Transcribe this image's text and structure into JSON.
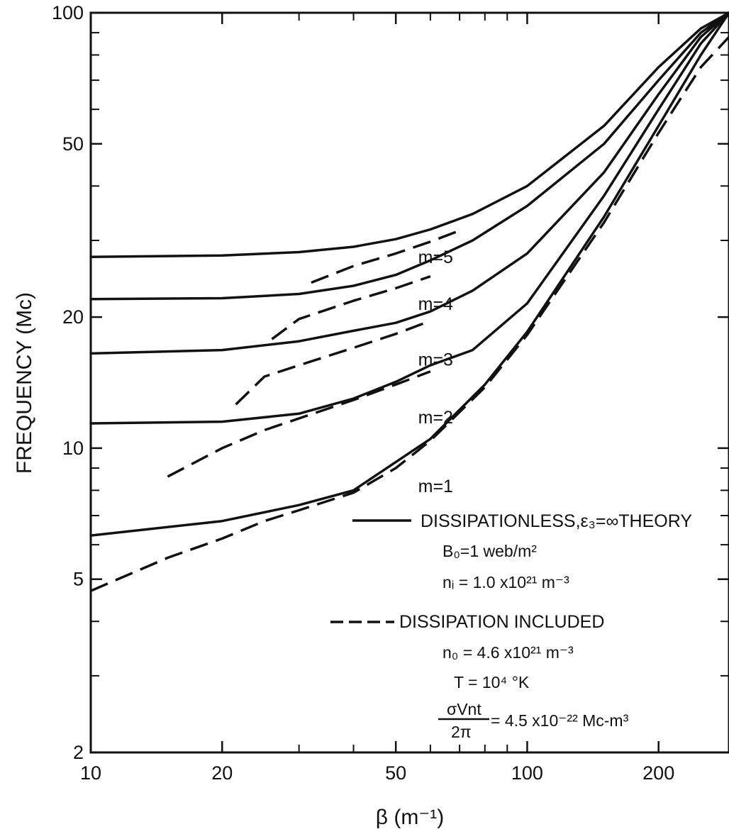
{
  "chart_data": {
    "type": "line",
    "xlabel": "β (m⁻¹)",
    "ylabel": "FREQUENCY (Mc)",
    "xscale": "log",
    "yscale": "log",
    "xlim": [
      10,
      290
    ],
    "ylim": [
      2,
      100
    ],
    "x_ticks": [
      10,
      20,
      50,
      100,
      200
    ],
    "x_tick_labels": [
      "10",
      "20",
      "50",
      "100",
      "200"
    ],
    "y_ticks": [
      2,
      5,
      10,
      20,
      50,
      100
    ],
    "y_tick_labels": [
      "2",
      "5",
      "10",
      "20",
      "50",
      "100"
    ],
    "y_minor_ticks": [
      3,
      4,
      6,
      7,
      8,
      9,
      30,
      40,
      60,
      70,
      80,
      90
    ],
    "series": [
      {
        "name": "m=1",
        "style": "solid",
        "x": [
          10,
          20,
          30,
          40,
          60,
          80,
          100,
          150,
          200,
          250,
          290
        ],
        "y": [
          6.3,
          6.8,
          7.4,
          8.0,
          10.5,
          14.0,
          18.5,
          34.0,
          55.0,
          80.0,
          100.0
        ]
      },
      {
        "name": "m=2",
        "style": "solid",
        "x": [
          10,
          20,
          30,
          40,
          50,
          60,
          75,
          100,
          150,
          200,
          250,
          290
        ],
        "y": [
          11.4,
          11.5,
          12.0,
          13.0,
          14.2,
          15.5,
          16.8,
          21.5,
          38.0,
          60.0,
          85.0,
          100.0
        ]
      },
      {
        "name": "m=3",
        "style": "solid",
        "x": [
          10,
          20,
          30,
          40,
          50,
          60,
          75,
          100,
          150,
          200,
          250,
          290
        ],
        "y": [
          16.5,
          16.8,
          17.6,
          18.6,
          19.4,
          20.6,
          23.0,
          28.0,
          43.0,
          65.0,
          88.0,
          100.0
        ]
      },
      {
        "name": "m=4",
        "style": "solid",
        "x": [
          10,
          20,
          30,
          40,
          50,
          60,
          75,
          100,
          150,
          200,
          250,
          290
        ],
        "y": [
          22.0,
          22.1,
          22.6,
          23.6,
          25.0,
          27.0,
          30.0,
          36.0,
          50.0,
          70.0,
          90.0,
          100.0
        ]
      },
      {
        "name": "m=5",
        "style": "solid",
        "x": [
          10,
          20,
          30,
          40,
          50,
          60,
          75,
          100,
          150,
          200,
          250,
          290
        ],
        "y": [
          27.5,
          27.7,
          28.2,
          29.0,
          30.2,
          31.8,
          34.5,
          40.0,
          55.0,
          75.0,
          92.0,
          100.0
        ]
      },
      {
        "name": "m=1",
        "style": "dashed",
        "x": [
          10,
          15,
          20,
          25,
          30,
          40,
          50,
          60,
          80,
          100,
          150,
          200,
          250,
          290
        ],
        "y": [
          4.7,
          5.6,
          6.2,
          6.8,
          7.2,
          7.9,
          9.0,
          10.4,
          13.8,
          18.2,
          33.0,
          53.0,
          75.0,
          88.0
        ]
      },
      {
        "name": "m=2",
        "style": "dashed",
        "x": [
          15,
          20,
          25,
          30,
          40,
          50,
          60
        ],
        "y": [
          8.6,
          10.0,
          11.0,
          11.7,
          12.9,
          14.0,
          15.0
        ]
      },
      {
        "name": "m=3",
        "style": "dashed",
        "x": [
          21.5,
          25,
          30,
          40,
          50,
          60
        ],
        "y": [
          12.6,
          14.6,
          15.5,
          17.0,
          18.3,
          19.6
        ]
      },
      {
        "name": "m=4",
        "style": "dashed",
        "x": [
          26,
          30,
          40,
          50,
          60
        ],
        "y": [
          17.8,
          19.8,
          21.8,
          23.3,
          24.8
        ]
      },
      {
        "name": "m=5",
        "style": "dashed",
        "x": [
          32,
          40,
          50,
          60,
          70
        ],
        "y": [
          24.0,
          26.2,
          28.0,
          29.8,
          31.6
        ]
      }
    ],
    "curve_labels": [
      {
        "text": "m=5",
        "x": 55,
        "y": 27.5
      },
      {
        "text": "m=4",
        "x": 55,
        "y": 21.5
      },
      {
        "text": "m=3",
        "x": 55,
        "y": 16.0
      },
      {
        "text": "m=2",
        "x": 55,
        "y": 11.8
      },
      {
        "text": "m=1",
        "x": 55,
        "y": 8.2
      }
    ],
    "legend": {
      "solid_label": "DISSIPATIONLESS,ε₃=∞THEORY",
      "solid_params": [
        "B₀=1 web/m²",
        "nᵢ = 1.0 x10²¹ m⁻³"
      ],
      "dashed_label": "DISSIPATION INCLUDED",
      "dashed_params": [
        "n₀ = 4.6 x10²¹ m⁻³",
        "T = 10⁴ °K"
      ],
      "fraction_numerator": "σVnt",
      "fraction_denominator": "2π",
      "fraction_value": "= 4.5 x10⁻²² Mc-m³"
    }
  }
}
